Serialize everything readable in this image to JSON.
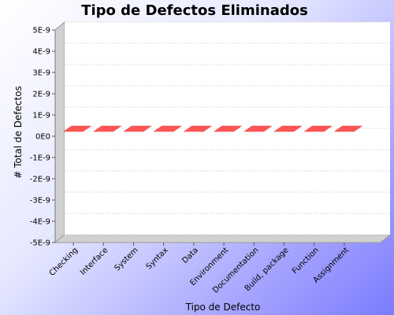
{
  "chart_data": {
    "type": "bar",
    "title": "Tipo de Defectos Eliminados",
    "xlabel": "Tipo de Defecto",
    "ylabel": "# Total de Defectos",
    "categories": [
      "Checking",
      "Interface",
      "System",
      "Syntax",
      "Data",
      "Environment",
      "Documentation",
      "Build, package",
      "Function",
      "Assignment"
    ],
    "values": [
      0,
      0,
      0,
      0,
      0,
      0,
      0,
      0,
      0,
      0
    ],
    "ylim": [
      -5e-09,
      5e-09
    ],
    "yticks": [
      5e-09,
      4e-09,
      3e-09,
      2e-09,
      1e-09,
      0,
      -1e-09,
      -2e-09,
      -3e-09,
      -4e-09,
      -5e-09
    ],
    "ytick_labels": [
      "5E-9",
      "4E-9",
      "3E-9",
      "2E-9",
      "1E-9",
      "0E0",
      "-1E-9",
      "-2E-9",
      "-3E-9",
      "-4E-9",
      "-5E-9"
    ],
    "grid": true,
    "bar_color": "#ff5555",
    "plot_background": "#ffffff",
    "grid_color": "#d8d8d8"
  }
}
